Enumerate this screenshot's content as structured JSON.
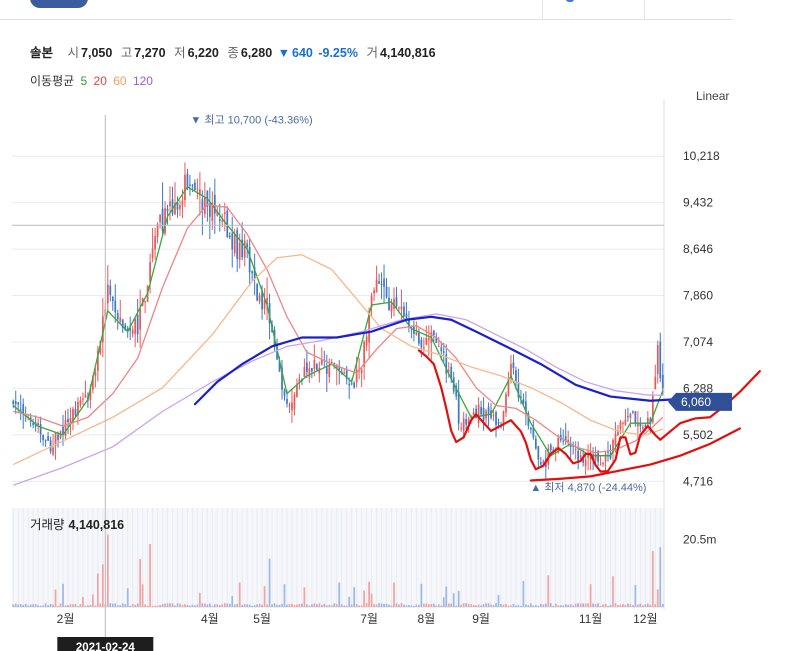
{
  "header": {
    "stock_name": "솔본",
    "open_label": "시",
    "open_value": "7,050",
    "high_label": "고",
    "high_value": "7,270",
    "low_label": "저",
    "low_value": "6,220",
    "close_label": "종",
    "close_value": "6,280",
    "change_arrow": "▼",
    "change_value": "640",
    "change_pct": "-9.25%",
    "volume_label": "거",
    "volume_value": "4,140,816"
  },
  "ma_legend": {
    "title": "이동평균",
    "items": [
      {
        "period": "5",
        "color": "#2ca02c"
      },
      {
        "period": "20",
        "color": "#e0453a"
      },
      {
        "period": "60",
        "color": "#f0a25a"
      },
      {
        "period": "120",
        "color": "#a05ad8"
      }
    ]
  },
  "scale_mode": "Linear",
  "volume_panel": {
    "label": "거래량",
    "value": "4,140,816"
  },
  "crosshair_date": "2021-02-24",
  "colors": {
    "up": "#e85a5a",
    "down": "#3f78c8",
    "ma5": "#3aa83a",
    "ma20": "#ee8585",
    "ma60": "#f5b98c",
    "ma120": "#c8a5ef",
    "annot_blue": "#1a21c8",
    "annot_red": "#e01010",
    "price_tag": "#2f4f96",
    "grid": "#ececec",
    "vol_bg": "#f6f7fb"
  },
  "chart_data": {
    "type": "candlestick",
    "ylim": [
      4400,
      11000
    ],
    "y_ticks": [
      10218,
      9432,
      8646,
      7860,
      7074,
      6288,
      5502,
      4716
    ],
    "y_tick_labels": [
      "10,218",
      "9,432",
      "8,646",
      "7,860",
      "7,074",
      "6,288",
      "5,502",
      "4,716"
    ],
    "x_tick_labels": [
      {
        "label": "2월",
        "day": 21
      },
      {
        "label": "4월",
        "day": 79
      },
      {
        "label": "5월",
        "day": 100
      },
      {
        "label": "7월",
        "day": 143
      },
      {
        "label": "8월",
        "day": 166
      },
      {
        "label": "9월",
        "day": 188
      },
      {
        "label": "11월",
        "day": 232
      },
      {
        "label": "12월",
        "day": 254
      }
    ],
    "total_days": 262,
    "crosshair_day": 37,
    "crosshair_price": 9050,
    "current_price": 6060,
    "current_price_label": "6,060",
    "high_annotation": {
      "day": 72,
      "price": 10700,
      "text": "▼ 최고 10,700 (-43.36%)"
    },
    "low_annotation": {
      "day": 211,
      "price": 4870,
      "text": "▲ 최저 4,870 (-24.44%)"
    },
    "volume_ylim": [
      0,
      30000000
    ],
    "volume_tick_labels": [
      {
        "label": "20.5m",
        "value": 20500000
      }
    ],
    "price_path": [
      [
        0,
        6050
      ],
      [
        5,
        5850
      ],
      [
        10,
        5600
      ],
      [
        15,
        5250
      ],
      [
        20,
        5650
      ],
      [
        25,
        5950
      ],
      [
        30,
        6150
      ],
      [
        35,
        7100
      ],
      [
        38,
        7900
      ],
      [
        42,
        7500
      ],
      [
        46,
        7150
      ],
      [
        50,
        7350
      ],
      [
        54,
        8100
      ],
      [
        58,
        9100
      ],
      [
        62,
        9350
      ],
      [
        66,
        9250
      ],
      [
        70,
        9850
      ],
      [
        74,
        9650
      ],
      [
        78,
        9450
      ],
      [
        82,
        9300
      ],
      [
        86,
        9000
      ],
      [
        90,
        8700
      ],
      [
        94,
        8600
      ],
      [
        98,
        7900
      ],
      [
        102,
        7600
      ],
      [
        106,
        6800
      ],
      [
        110,
        6050
      ],
      [
        114,
        6350
      ],
      [
        118,
        6600
      ],
      [
        124,
        6750
      ],
      [
        130,
        6650
      ],
      [
        136,
        6300
      ],
      [
        140,
        6650
      ],
      [
        144,
        7950
      ],
      [
        148,
        8000
      ],
      [
        152,
        7700
      ],
      [
        156,
        7650
      ],
      [
        160,
        7250
      ],
      [
        164,
        7050
      ],
      [
        168,
        7200
      ],
      [
        172,
        6900
      ],
      [
        176,
        6400
      ],
      [
        180,
        5650
      ],
      [
        184,
        5850
      ],
      [
        188,
        5900
      ],
      [
        192,
        5850
      ],
      [
        196,
        5650
      ],
      [
        200,
        6800
      ],
      [
        204,
        6100
      ],
      [
        208,
        5550
      ],
      [
        212,
        4950
      ],
      [
        216,
        5200
      ],
      [
        220,
        5450
      ],
      [
        224,
        5350
      ],
      [
        228,
        5050
      ],
      [
        232,
        5250
      ],
      [
        236,
        4980
      ],
      [
        240,
        5200
      ],
      [
        244,
        5650
      ],
      [
        248,
        5800
      ],
      [
        252,
        5650
      ],
      [
        256,
        5700
      ],
      [
        259,
        6920
      ],
      [
        261,
        6280
      ]
    ],
    "series": [
      {
        "name": "5",
        "path": [
          [
            0,
            6000
          ],
          [
            10,
            5650
          ],
          [
            20,
            5500
          ],
          [
            30,
            6100
          ],
          [
            38,
            7600
          ],
          [
            46,
            7250
          ],
          [
            54,
            7900
          ],
          [
            62,
            9200
          ],
          [
            70,
            9700
          ],
          [
            78,
            9500
          ],
          [
            86,
            9050
          ],
          [
            94,
            8650
          ],
          [
            102,
            7700
          ],
          [
            110,
            6200
          ],
          [
            118,
            6500
          ],
          [
            128,
            6700
          ],
          [
            136,
            6400
          ],
          [
            144,
            7700
          ],
          [
            152,
            7750
          ],
          [
            160,
            7300
          ],
          [
            168,
            7150
          ],
          [
            176,
            6450
          ],
          [
            184,
            5800
          ],
          [
            192,
            5850
          ],
          [
            200,
            6500
          ],
          [
            208,
            5700
          ],
          [
            216,
            5150
          ],
          [
            224,
            5350
          ],
          [
            232,
            5150
          ],
          [
            240,
            5150
          ],
          [
            248,
            5700
          ],
          [
            256,
            5700
          ],
          [
            261,
            6250
          ]
        ]
      },
      {
        "name": "20",
        "path": [
          [
            0,
            5900
          ],
          [
            10,
            5800
          ],
          [
            20,
            5650
          ],
          [
            30,
            5800
          ],
          [
            40,
            6200
          ],
          [
            50,
            6800
          ],
          [
            60,
            8000
          ],
          [
            70,
            9000
          ],
          [
            78,
            9400
          ],
          [
            86,
            9350
          ],
          [
            94,
            8900
          ],
          [
            102,
            8300
          ],
          [
            110,
            7500
          ],
          [
            118,
            6900
          ],
          [
            128,
            6700
          ],
          [
            138,
            6550
          ],
          [
            146,
            6950
          ],
          [
            154,
            7300
          ],
          [
            162,
            7350
          ],
          [
            170,
            7150
          ],
          [
            178,
            6800
          ],
          [
            186,
            6300
          ],
          [
            194,
            6000
          ],
          [
            202,
            5950
          ],
          [
            210,
            5750
          ],
          [
            218,
            5500
          ],
          [
            226,
            5300
          ],
          [
            234,
            5200
          ],
          [
            242,
            5250
          ],
          [
            250,
            5400
          ],
          [
            256,
            5600
          ],
          [
            261,
            5800
          ]
        ]
      },
      {
        "name": "60",
        "path": [
          [
            0,
            5000
          ],
          [
            20,
            5400
          ],
          [
            40,
            5800
          ],
          [
            60,
            6300
          ],
          [
            80,
            7200
          ],
          [
            96,
            8100
          ],
          [
            106,
            8500
          ],
          [
            116,
            8550
          ],
          [
            128,
            8300
          ],
          [
            138,
            7800
          ],
          [
            148,
            7300
          ],
          [
            160,
            7000
          ],
          [
            172,
            6850
          ],
          [
            184,
            6650
          ],
          [
            196,
            6500
          ],
          [
            208,
            6300
          ],
          [
            220,
            6050
          ],
          [
            232,
            5750
          ],
          [
            244,
            5550
          ],
          [
            254,
            5500
          ],
          [
            261,
            5600
          ]
        ]
      },
      {
        "name": "120",
        "path": [
          [
            0,
            4650
          ],
          [
            20,
            4950
          ],
          [
            40,
            5300
          ],
          [
            60,
            5900
          ],
          [
            80,
            6400
          ],
          [
            96,
            6750
          ],
          [
            110,
            7000
          ],
          [
            124,
            7100
          ],
          [
            140,
            7250
          ],
          [
            156,
            7450
          ],
          [
            170,
            7550
          ],
          [
            182,
            7450
          ],
          [
            194,
            7200
          ],
          [
            206,
            6950
          ],
          [
            218,
            6650
          ],
          [
            230,
            6400
          ],
          [
            242,
            6250
          ],
          [
            254,
            6180
          ],
          [
            261,
            6170
          ]
        ]
      }
    ],
    "annotation_lines": [
      {
        "color": "blue",
        "points": [
          [
            73,
            6020
          ],
          [
            82,
            6400
          ],
          [
            92,
            6700
          ],
          [
            104,
            7000
          ],
          [
            116,
            7150
          ],
          [
            130,
            7150
          ],
          [
            144,
            7250
          ],
          [
            158,
            7450
          ],
          [
            168,
            7500
          ],
          [
            176,
            7450
          ],
          [
            186,
            7250
          ],
          [
            198,
            7000
          ],
          [
            212,
            6700
          ],
          [
            226,
            6350
          ],
          [
            240,
            6150
          ],
          [
            256,
            6080
          ],
          [
            272,
            6120
          ]
        ]
      },
      {
        "name": "red-wave",
        "color": "red",
        "points": [
          [
            163,
            6930
          ],
          [
            166,
            6830
          ],
          [
            169,
            6700
          ],
          [
            172,
            6300
          ],
          [
            174,
            5950
          ],
          [
            176,
            5570
          ],
          [
            178,
            5380
          ],
          [
            181,
            5460
          ],
          [
            184,
            5750
          ],
          [
            186,
            5850
          ],
          [
            190,
            5660
          ],
          [
            192,
            5570
          ],
          [
            196,
            5660
          ],
          [
            200,
            5750
          ],
          [
            204,
            5560
          ],
          [
            206,
            5370
          ],
          [
            208,
            5080
          ],
          [
            210,
            4920
          ],
          [
            213,
            4980
          ],
          [
            216,
            5180
          ],
          [
            219,
            5280
          ],
          [
            222,
            5180
          ],
          [
            225,
            5020
          ],
          [
            228,
            5060
          ],
          [
            230,
            5180
          ],
          [
            232,
            5180
          ],
          [
            234,
            4990
          ],
          [
            236,
            4880
          ],
          [
            239,
            4890
          ],
          [
            242,
            5080
          ],
          [
            244,
            5460
          ],
          [
            246,
            5460
          ],
          [
            248,
            5170
          ],
          [
            250,
            5200
          ],
          [
            252,
            5500
          ],
          [
            255,
            5650
          ],
          [
            258,
            5500
          ],
          [
            260,
            5420
          ],
          [
            264,
            5560
          ],
          [
            268,
            5700
          ],
          [
            274,
            5780
          ],
          [
            280,
            5800
          ],
          [
            286,
            6000
          ],
          [
            292,
            6230
          ],
          [
            300,
            6580
          ]
        ]
      },
      {
        "name": "red-trend",
        "color": "red",
        "points": [
          [
            208,
            4730
          ],
          [
            220,
            4760
          ],
          [
            232,
            4800
          ],
          [
            244,
            4900
          ],
          [
            256,
            5000
          ],
          [
            268,
            5150
          ],
          [
            280,
            5350
          ],
          [
            292,
            5610
          ]
        ]
      }
    ]
  }
}
